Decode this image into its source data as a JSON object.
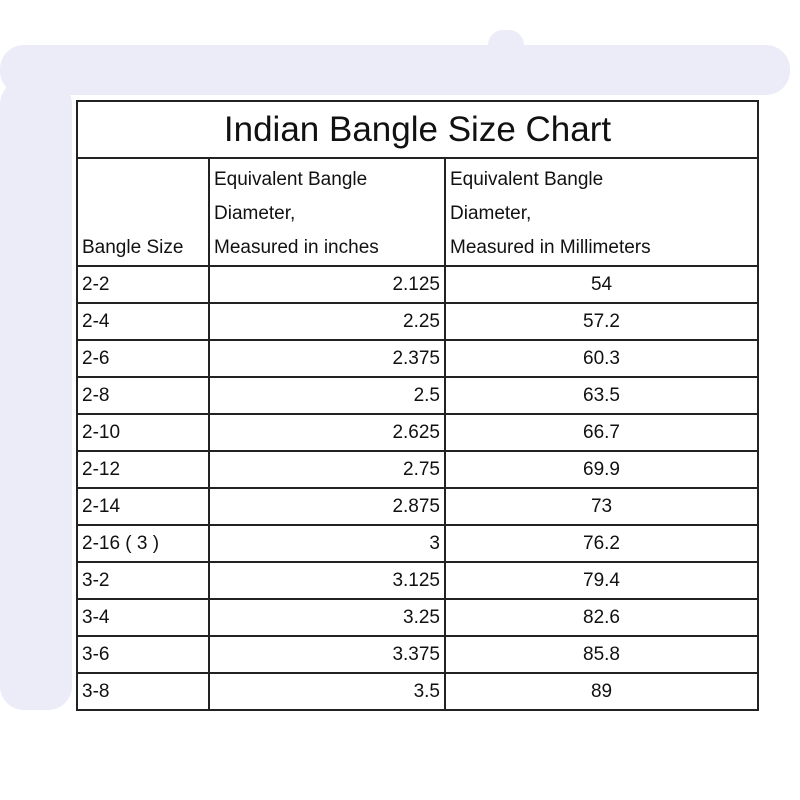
{
  "title": "Indian Bangle Size Chart",
  "columns": [
    "Bangle Size",
    "Equivalent Bangle Diameter, Measured in inches",
    "Equivalent Bangle Diameter, Measured in Millimeters"
  ],
  "header": {
    "col1": "Bangle Size",
    "col2_line1": "Equivalent Bangle",
    "col2_line2": "Diameter,",
    "col2_line3": "Measured in inches",
    "col3_line1": "Equivalent Bangle",
    "col3_line2": "Diameter,",
    "col3_line3": "Measured in Millimeters"
  },
  "rows": [
    [
      "2-2",
      "2.125",
      "54"
    ],
    [
      "2-4",
      "2.25",
      "57.2"
    ],
    [
      "2-6",
      "2.375",
      "60.3"
    ],
    [
      "2-8",
      "2.5",
      "63.5"
    ],
    [
      "2-10",
      "2.625",
      "66.7"
    ],
    [
      "2-12",
      "2.75",
      "69.9"
    ],
    [
      "2-14",
      "2.875",
      "73"
    ],
    [
      "2-16 ( 3 )",
      "3",
      "76.2"
    ],
    [
      "3-2",
      "3.125",
      "79.4"
    ],
    [
      "3-4",
      "3.25",
      "82.6"
    ],
    [
      "3-6",
      "3.375",
      "85.8"
    ],
    [
      "3-8",
      "3.5",
      "89"
    ]
  ],
  "colors": {
    "background_brush": "#ecebf8",
    "border": "#222222"
  }
}
